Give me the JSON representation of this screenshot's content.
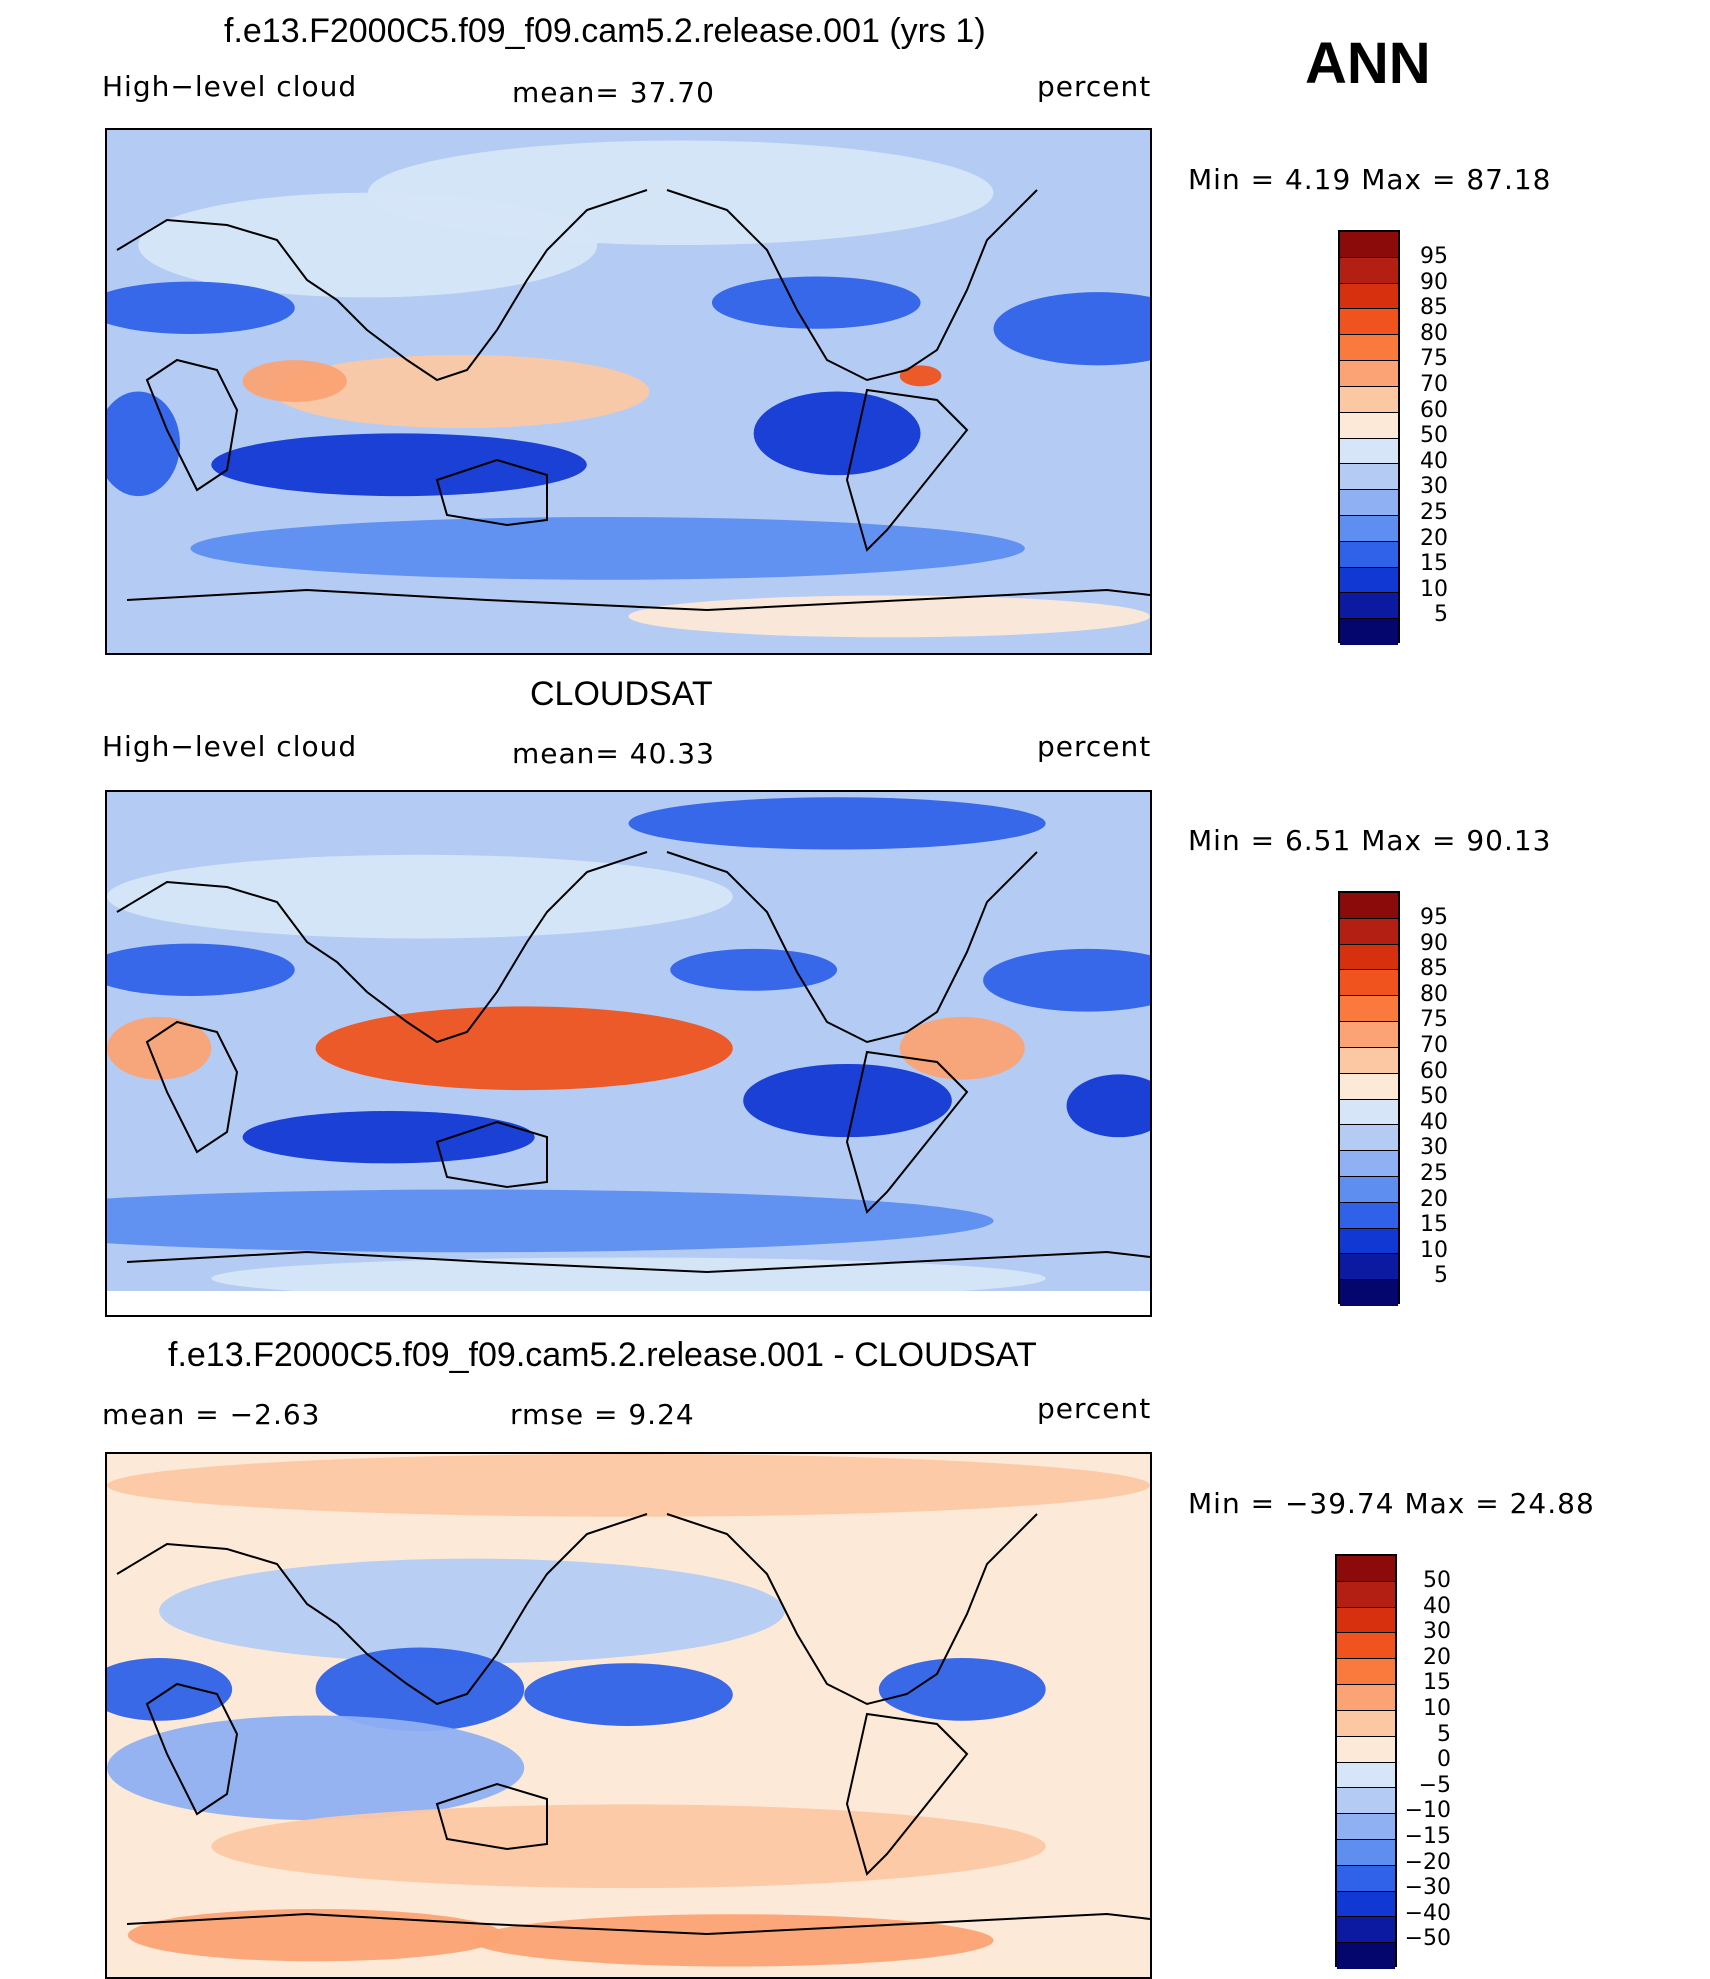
{
  "season": "ANN",
  "panels": [
    {
      "title": "f.e13.F2000C5.f09_f09.cam5.2.release.001 (yrs 1)",
      "left_label": "High−level cloud",
      "center_label": "mean=   37.70",
      "right_label": "percent",
      "minmax": "Min  =     4.19  Max  =    87.18",
      "colorbar": [
        "95",
        "90",
        "85",
        "80",
        "75",
        "70",
        "60",
        "50",
        "40",
        "30",
        "25",
        "20",
        "15",
        "10",
        "5"
      ],
      "colors": [
        "#8b0a0a",
        "#b31f12",
        "#d6300f",
        "#f0531e",
        "#fa7a3e",
        "#fba374",
        "#fcc8a4",
        "#fde9d7",
        "#d6e6f8",
        "#b4ccf4",
        "#8fb0f2",
        "#5e8ef0",
        "#2f62e8",
        "#1238d4",
        "#0b1aa0",
        "#04066e"
      ],
      "map_style": "model"
    },
    {
      "title": "CLOUDSAT",
      "left_label": "High−level cloud",
      "center_label": "mean=   40.33",
      "right_label": "percent",
      "minmax": "Min  =     6.51  Max  =    90.13",
      "colorbar": [
        "95",
        "90",
        "85",
        "80",
        "75",
        "70",
        "60",
        "50",
        "40",
        "30",
        "25",
        "20",
        "15",
        "10",
        "5"
      ],
      "colors": [
        "#8b0a0a",
        "#b31f12",
        "#d6300f",
        "#f0531e",
        "#fa7a3e",
        "#fba374",
        "#fcc8a4",
        "#fde9d7",
        "#d6e6f8",
        "#b4ccf4",
        "#8fb0f2",
        "#5e8ef0",
        "#2f62e8",
        "#1238d4",
        "#0b1aa0",
        "#04066e"
      ],
      "map_style": "obs"
    },
    {
      "title": "f.e13.F2000C5.f09_f09.cam5.2.release.001 - CLOUDSAT",
      "left_label": "mean  =    −2.63",
      "center_label": "rmse  =     9.24",
      "right_label": "percent",
      "minmax": "Min  = −39.74  Max  =    24.88",
      "colorbar": [
        "50",
        "40",
        "30",
        "20",
        "15",
        "10",
        "5",
        "0",
        "−5",
        "−10",
        "−15",
        "−20",
        "−30",
        "−40",
        "−50"
      ],
      "colors": [
        "#8b0a0a",
        "#b31f12",
        "#d6300f",
        "#f0531e",
        "#fa7a3e",
        "#fba374",
        "#fcc8a4",
        "#fde9d7",
        "#d6e6f8",
        "#b4ccf4",
        "#8fb0f2",
        "#5e8ef0",
        "#2f62e8",
        "#1238d4",
        "#0b1aa0",
        "#04066e"
      ],
      "map_style": "diff"
    }
  ]
}
